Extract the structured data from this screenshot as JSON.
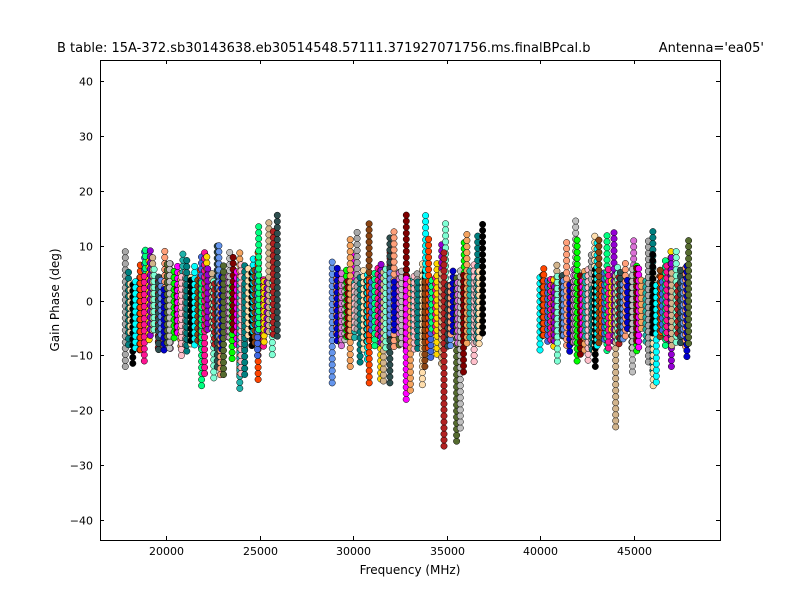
{
  "chart_data": {
    "type": "scatter",
    "title": "B table: 15A-372.sb30143638.eb30514548.57111.371927071756.ms.finalBPcal.b",
    "subtitle": "Antenna='ea05'",
    "xlabel": "Frequency (MHz)",
    "ylabel": "Gain Phase (deg)",
    "xlim": [
      16474,
      49594
    ],
    "ylim": [
      -43.6,
      43.8
    ],
    "xticks": [
      20000,
      25000,
      30000,
      35000,
      40000,
      45000
    ],
    "yticks": [
      -40,
      -30,
      -20,
      -10,
      0,
      10,
      20,
      30,
      40
    ],
    "grid": false,
    "channel_step_mhz": 125,
    "palette": [
      "#a9a9a9",
      "#008080",
      "#ffdead",
      "#000000",
      "#00ffff",
      "#8b4513",
      "#ff4500",
      "#4169e1",
      "#00ff7f",
      "#ff1493",
      "#ffd700",
      "#9400d3",
      "#d2b48c",
      "#7fffd4",
      "#b22222",
      "#2f4f4f",
      "#6495ed",
      "#ffa07a",
      "#0000cd",
      "#556b2f",
      "#da70d6",
      "#c0c0c0",
      "#00ff00",
      "#800000",
      "#ff00ff",
      "#f4a460",
      "#20b2aa",
      "#ffc0cb"
    ],
    "spectral_windows": [
      {
        "start": 17900,
        "end": 18900,
        "min": -12,
        "max": 10
      },
      {
        "start": 18900,
        "end": 19900,
        "min": -11,
        "max": 9.5
      },
      {
        "start": 19900,
        "end": 20900,
        "min": -9,
        "max": 9
      },
      {
        "start": 20900,
        "end": 21900,
        "min": -10,
        "max": 8
      },
      {
        "start": 21900,
        "end": 22900,
        "min": -15.5,
        "max": 10.5
      },
      {
        "start": 22900,
        "end": 23900,
        "min": -13.5,
        "max": 9.5
      },
      {
        "start": 23900,
        "end": 24900,
        "min": -16,
        "max": 9
      },
      {
        "start": 24900,
        "end": 26000,
        "min": -10,
        "max": 16.5
      },
      {
        "start": 28900,
        "end": 29900,
        "min": -15,
        "max": 9
      },
      {
        "start": 29900,
        "end": 30900,
        "min": -12,
        "max": 14
      },
      {
        "start": 30900,
        "end": 31900,
        "min": -15,
        "max": 9
      },
      {
        "start": 31900,
        "end": 32900,
        "min": -15,
        "max": 16
      },
      {
        "start": 32900,
        "end": 33900,
        "min": -18,
        "max": 16
      },
      {
        "start": 33900,
        "end": 34900,
        "min": -12,
        "max": 14
      },
      {
        "start": 34900,
        "end": 35900,
        "min": -26.5,
        "max": 11
      },
      {
        "start": 35900,
        "end": 37000,
        "min": -13,
        "max": 14.5
      },
      {
        "start": 39950,
        "end": 40950,
        "min": -9,
        "max": 7
      },
      {
        "start": 40950,
        "end": 41950,
        "min": -11,
        "max": 15
      },
      {
        "start": 41950,
        "end": 42950,
        "min": -11,
        "max": 12
      },
      {
        "start": 42950,
        "end": 43950,
        "min": -12,
        "max": 13
      },
      {
        "start": 43950,
        "end": 44950,
        "min": -23,
        "max": 11
      },
      {
        "start": 44950,
        "end": 45950,
        "min": -13,
        "max": 13.5
      },
      {
        "start": 45950,
        "end": 46950,
        "min": -15.5,
        "max": 10
      },
      {
        "start": 46950,
        "end": 48050,
        "min": -12,
        "max": 11.5
      }
    ]
  }
}
